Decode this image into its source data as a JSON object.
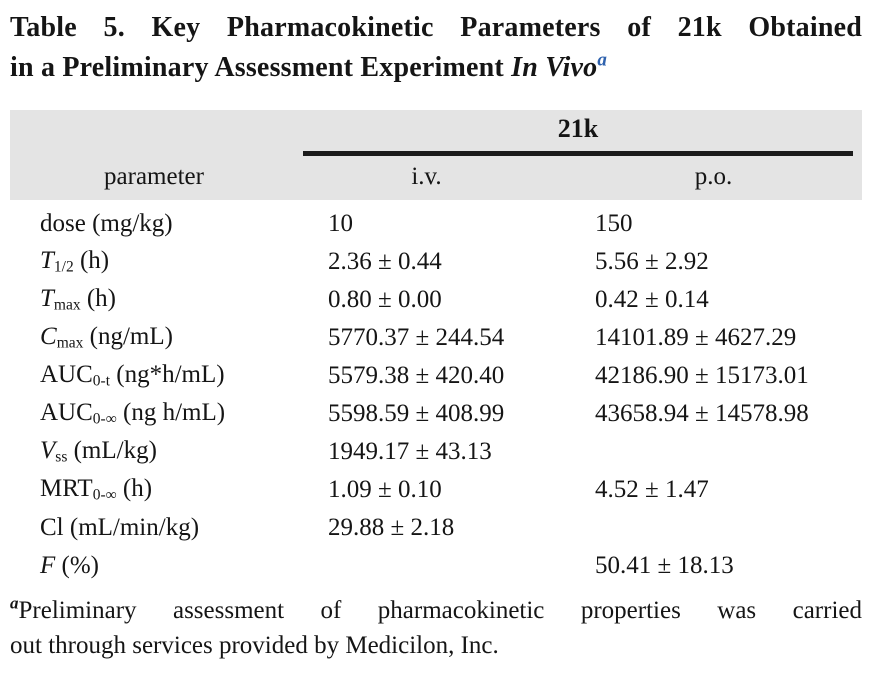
{
  "title": {
    "line1": "Table 5. Key Pharmacokinetic Parameters of 21k Obtained",
    "line2_text": "in a Preliminary Assessment Experiment ",
    "line2_italic": "In Vivo",
    "footnote_marker": "a"
  },
  "table": {
    "group_header": "21k",
    "col_parameter": "parameter",
    "col_iv": "i.v.",
    "col_po": "p.o.",
    "rows": [
      {
        "param": [
          {
            "text": "dose (mg/kg)",
            "style": "normal"
          }
        ],
        "iv": "10",
        "po": "150"
      },
      {
        "param": [
          {
            "text": "T",
            "style": "italic"
          },
          {
            "text": "1/2",
            "style": "sub"
          },
          {
            "text": " (h)",
            "style": "normal"
          }
        ],
        "iv": "2.36 ± 0.44",
        "po": "5.56 ± 2.92"
      },
      {
        "param": [
          {
            "text": "T",
            "style": "italic"
          },
          {
            "text": "max",
            "style": "sub"
          },
          {
            "text": " (h)",
            "style": "normal"
          }
        ],
        "iv": "0.80 ± 0.00",
        "po": "0.42 ± 0.14"
      },
      {
        "param": [
          {
            "text": "C",
            "style": "italic"
          },
          {
            "text": "max",
            "style": "sub"
          },
          {
            "text": " (ng/mL)",
            "style": "normal"
          }
        ],
        "iv": "5770.37 ± 244.54",
        "po": "14101.89 ± 4627.29"
      },
      {
        "param": [
          {
            "text": "AUC",
            "style": "normal"
          },
          {
            "text": "0-t",
            "style": "sub"
          },
          {
            "text": " (ng*h/mL)",
            "style": "normal"
          }
        ],
        "iv": "5579.38 ± 420.40",
        "po": "42186.90 ± 15173.01"
      },
      {
        "param": [
          {
            "text": "AUC",
            "style": "normal"
          },
          {
            "text": "0-∞",
            "style": "sub"
          },
          {
            "text": " (ng h/mL)",
            "style": "normal"
          }
        ],
        "iv": "5598.59 ± 408.99",
        "po": "43658.94 ± 14578.98"
      },
      {
        "param": [
          {
            "text": "V",
            "style": "italic"
          },
          {
            "text": "ss",
            "style": "sub"
          },
          {
            "text": " (mL/kg)",
            "style": "normal"
          }
        ],
        "iv": "1949.17 ± 43.13",
        "po": ""
      },
      {
        "param": [
          {
            "text": "MRT",
            "style": "normal"
          },
          {
            "text": "0-∞",
            "style": "sub"
          },
          {
            "text": " (h)",
            "style": "normal"
          }
        ],
        "iv": "1.09 ± 0.10",
        "po": "4.52 ± 1.47"
      },
      {
        "param": [
          {
            "text": "Cl (mL/min/kg)",
            "style": "normal"
          }
        ],
        "iv": "29.88 ± 2.18",
        "po": ""
      },
      {
        "param": [
          {
            "text": "F",
            "style": "italic"
          },
          {
            "text": " (%)",
            "style": "normal"
          }
        ],
        "iv": "",
        "po": "50.41 ± 18.13"
      }
    ]
  },
  "footnote": {
    "marker": "a",
    "line1": "Preliminary assessment of pharmacokinetic properties was carried",
    "line2": "out through services provided by Medicilon, Inc."
  },
  "colors": {
    "header_band": "#e4e4e4",
    "rule": "#1b1b1b",
    "text": "#151515",
    "accent_blue": "#2f62ae"
  }
}
